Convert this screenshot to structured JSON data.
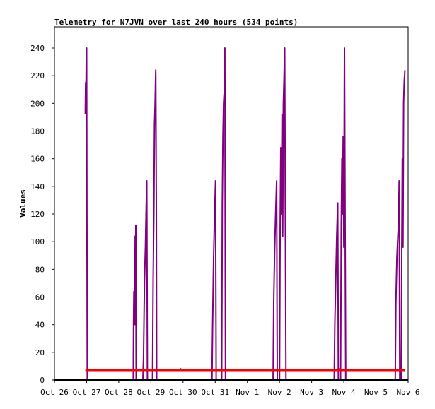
{
  "chart_data": {
    "type": "line",
    "title": "Telemetry for N7JVN over last 240 hours (534 points)",
    "xlabel": "",
    "ylabel": "Values",
    "x_ticks": [
      "Oct 26",
      "Oct 27",
      "Oct 28",
      "Oct 29",
      "Oct 30",
      "Oct 31",
      "Nov 1",
      "Nov 2",
      "Nov 3",
      "Nov 4",
      "Nov 5",
      "Nov 6"
    ],
    "xlim": [
      0,
      11
    ],
    "x_unit": "days since Oct 26 00:00",
    "y_ticks": [
      0,
      20,
      40,
      60,
      80,
      100,
      120,
      140,
      160,
      180,
      200,
      220,
      240
    ],
    "ylim": [
      0,
      240
    ],
    "grid": false,
    "legend": "none",
    "series": [
      {
        "name": "",
        "color": "#800080",
        "points": [
          [
            0.96,
            192
          ],
          [
            0.97,
            215
          ],
          [
            0.98,
            200
          ],
          [
            0.99,
            232
          ],
          [
            1.0,
            240
          ],
          [
            1.01,
            120
          ],
          [
            1.02,
            0
          ],
          [
            2.45,
            0
          ],
          [
            2.46,
            40
          ],
          [
            2.47,
            64
          ],
          [
            2.48,
            40
          ],
          [
            2.49,
            64
          ],
          [
            2.5,
            55
          ],
          [
            2.51,
            104
          ],
          [
            2.52,
            40
          ],
          [
            2.53,
            112
          ],
          [
            2.54,
            0
          ],
          [
            2.75,
            0
          ],
          [
            2.77,
            16
          ],
          [
            2.8,
            72
          ],
          [
            2.83,
            96
          ],
          [
            2.85,
            120
          ],
          [
            2.87,
            144
          ],
          [
            2.89,
            0
          ],
          [
            3.05,
            0
          ],
          [
            3.07,
            72
          ],
          [
            3.09,
            120
          ],
          [
            3.11,
            184
          ],
          [
            3.13,
            200
          ],
          [
            3.15,
            224
          ],
          [
            3.17,
            112
          ],
          [
            3.18,
            0
          ],
          [
            4.9,
            0
          ],
          [
            4.92,
            40
          ],
          [
            4.95,
            88
          ],
          [
            4.98,
            120
          ],
          [
            5.01,
            144
          ],
          [
            5.03,
            0
          ],
          [
            5.2,
            0
          ],
          [
            5.22,
            128
          ],
          [
            5.24,
            176
          ],
          [
            5.26,
            200
          ],
          [
            5.28,
            208
          ],
          [
            5.3,
            240
          ],
          [
            5.32,
            0
          ],
          [
            6.8,
            0
          ],
          [
            6.82,
            56
          ],
          [
            6.85,
            96
          ],
          [
            6.88,
            120
          ],
          [
            6.91,
            144
          ],
          [
            6.93,
            0
          ],
          [
            7.0,
            0
          ],
          [
            7.02,
            112
          ],
          [
            7.04,
            168
          ],
          [
            7.06,
            120
          ],
          [
            7.08,
            192
          ],
          [
            7.1,
            104
          ],
          [
            7.12,
            200
          ],
          [
            7.14,
            216
          ],
          [
            7.16,
            240
          ],
          [
            7.18,
            120
          ],
          [
            7.2,
            0
          ],
          [
            8.7,
            0
          ],
          [
            8.72,
            40
          ],
          [
            8.75,
            72
          ],
          [
            8.78,
            104
          ],
          [
            8.81,
            128
          ],
          [
            8.83,
            0
          ],
          [
            8.9,
            0
          ],
          [
            8.92,
            112
          ],
          [
            8.94,
            160
          ],
          [
            8.96,
            120
          ],
          [
            8.98,
            176
          ],
          [
            9.0,
            96
          ],
          [
            9.02,
            240
          ],
          [
            9.04,
            120
          ],
          [
            9.06,
            0
          ],
          [
            10.6,
            0
          ],
          [
            10.62,
            56
          ],
          [
            10.65,
            88
          ],
          [
            10.68,
            104
          ],
          [
            10.7,
            112
          ],
          [
            10.72,
            144
          ],
          [
            10.74,
            0
          ],
          [
            10.78,
            0
          ],
          [
            10.8,
            80
          ],
          [
            10.82,
            160
          ],
          [
            10.84,
            96
          ],
          [
            10.86,
            200
          ],
          [
            10.88,
            216
          ],
          [
            10.9,
            224
          ]
        ]
      },
      {
        "name": "",
        "color": "#ff0000",
        "points": [
          [
            0.96,
            7
          ],
          [
            3.9,
            7
          ],
          [
            3.92,
            8
          ],
          [
            3.94,
            7
          ],
          [
            8.85,
            7
          ],
          [
            8.87,
            8
          ],
          [
            8.89,
            7
          ],
          [
            10.9,
            7
          ]
        ]
      }
    ]
  }
}
